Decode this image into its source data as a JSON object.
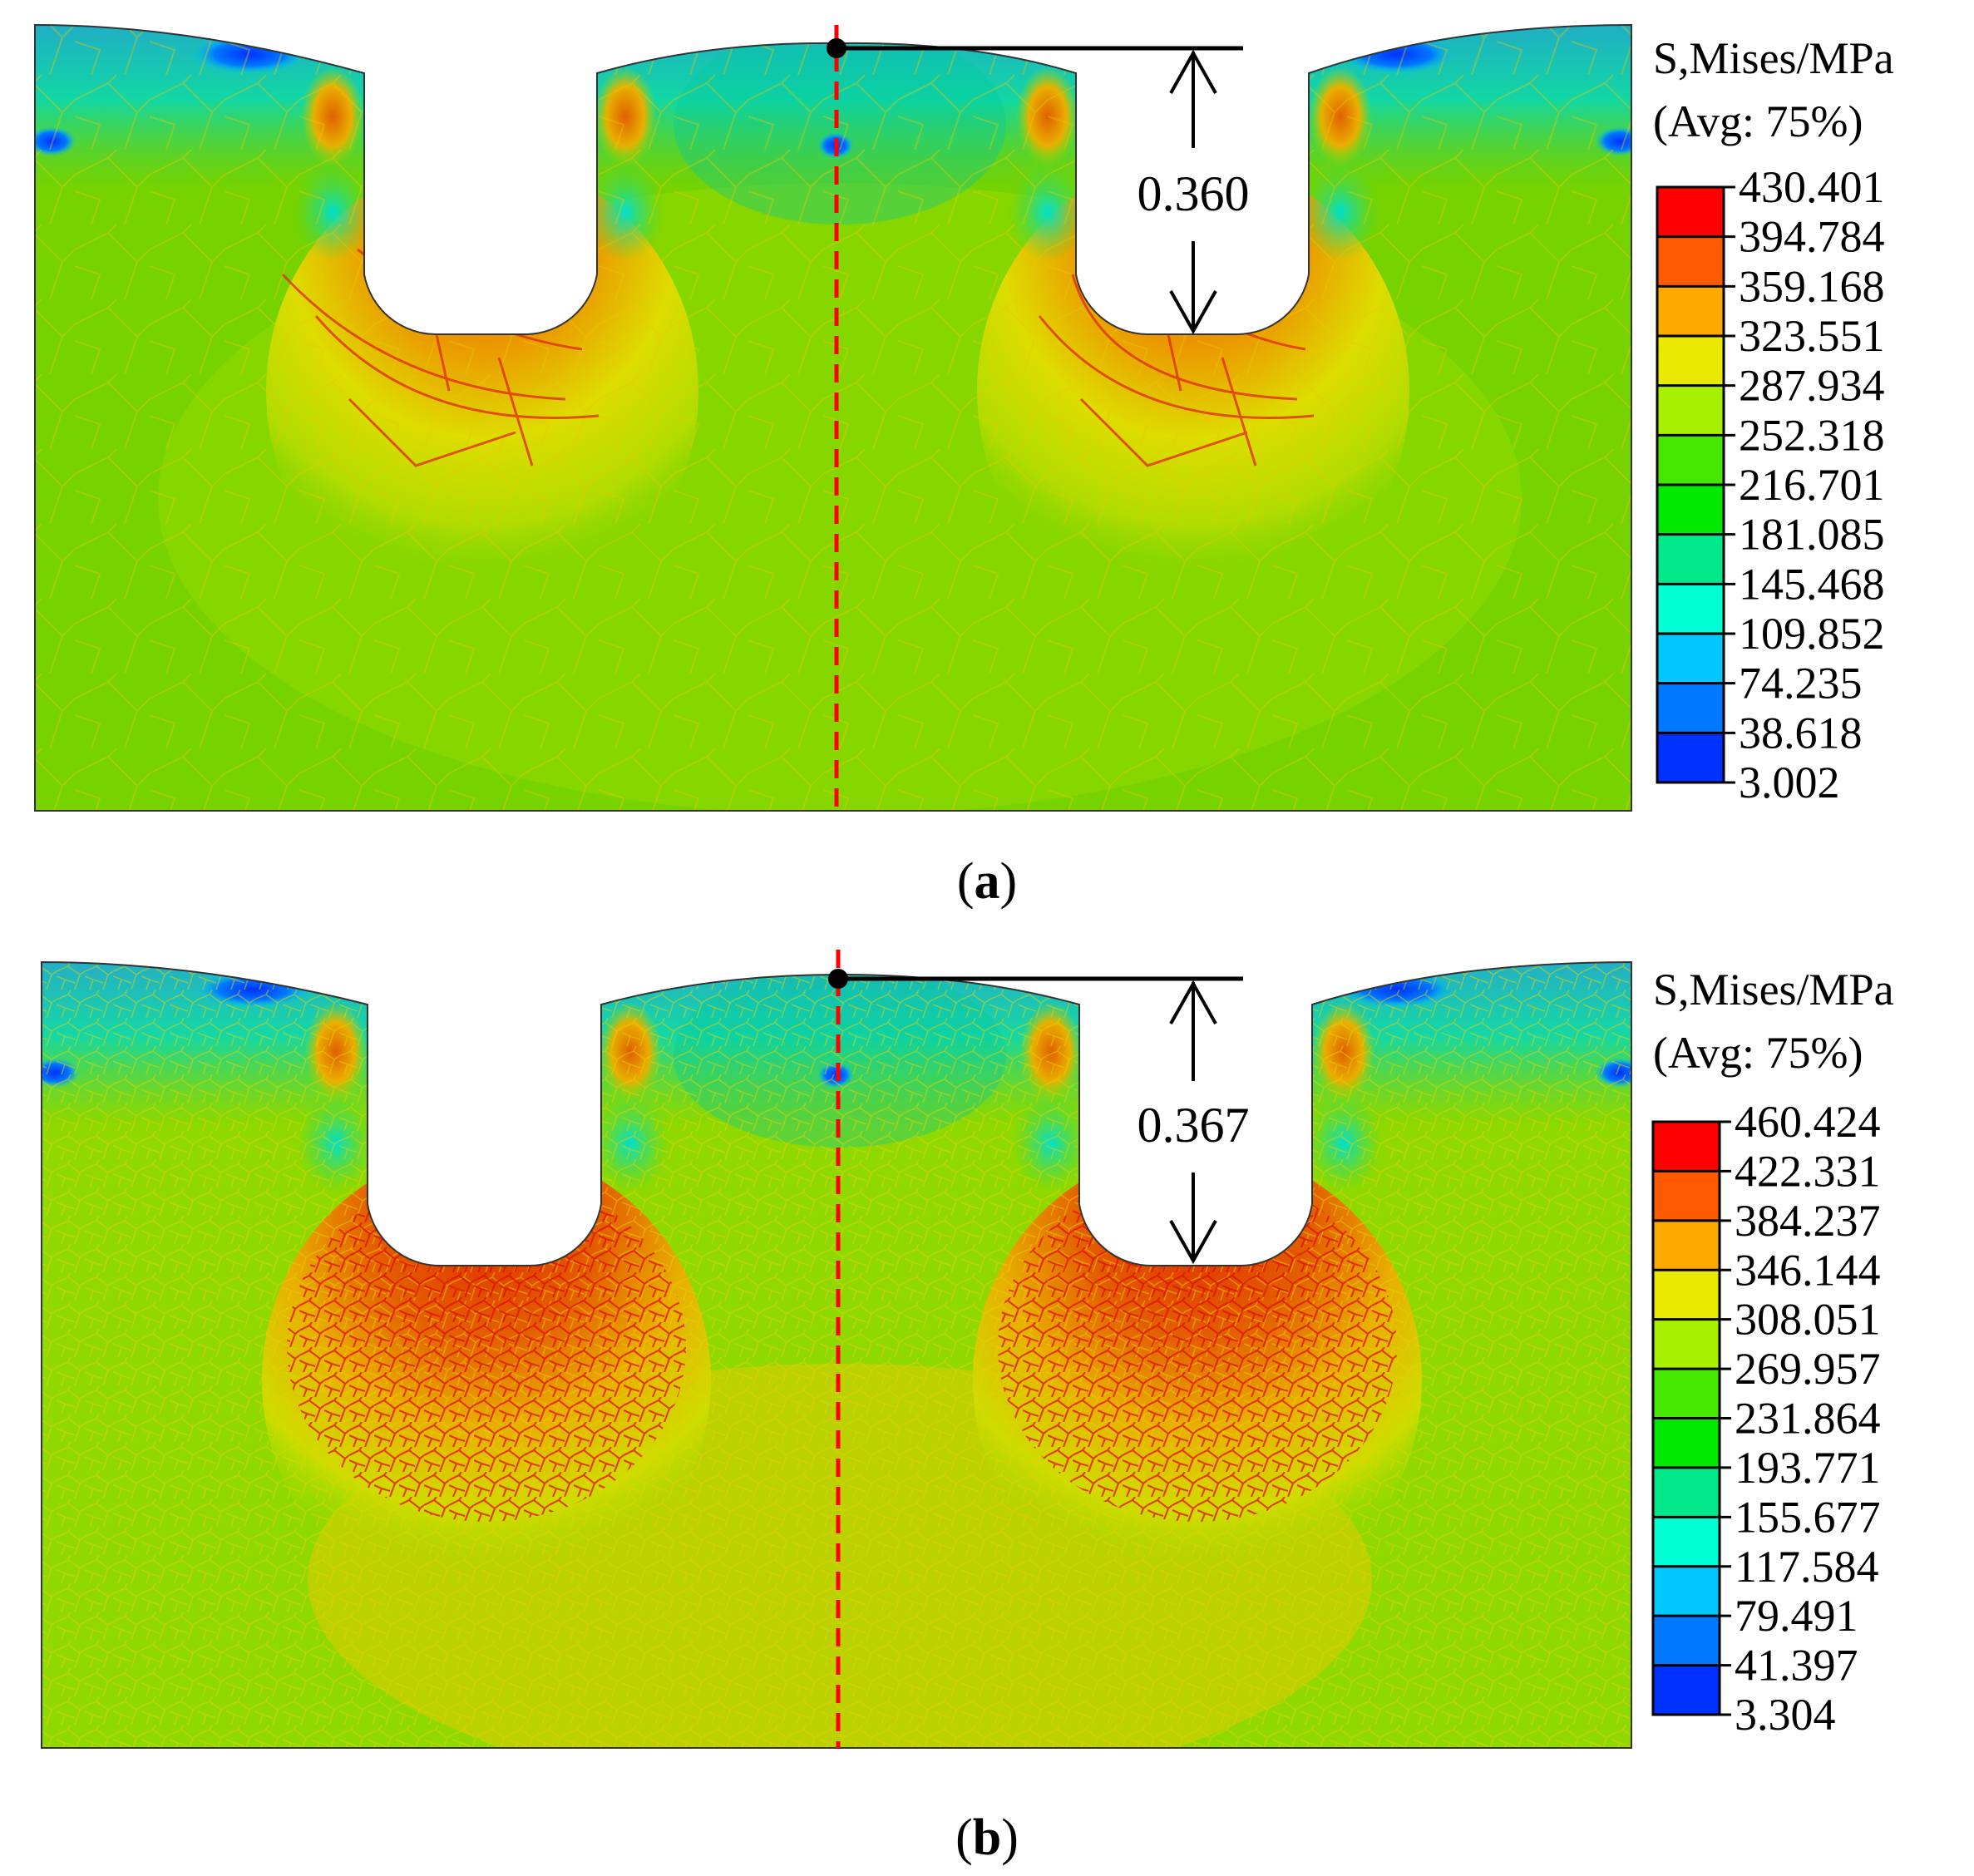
{
  "panels": [
    {
      "id": "a",
      "label": "a",
      "dimension_value": "0.360",
      "legend": {
        "title_line1": "S,Mises/MPa",
        "title_line2": "(Avg: 75%)",
        "values": [
          "430.401",
          "394.784",
          "359.168",
          "323.551",
          "287.934",
          "252.318",
          "216.701",
          "181.085",
          "145.468",
          "109.852",
          "74.235",
          "38.618",
          "3.002"
        ]
      }
    },
    {
      "id": "b",
      "label": "b",
      "dimension_value": "0.367",
      "legend": {
        "title_line1": "S,Mises/MPa",
        "title_line2": "(Avg: 75%)",
        "values": [
          "460.424",
          "422.331",
          "384.237",
          "346.144",
          "308.051",
          "269.957",
          "231.864",
          "193.771",
          "155.677",
          "117.584",
          "79.491",
          "41.397",
          "3.304"
        ]
      }
    }
  ],
  "legend_colors": [
    "#ff0000",
    "#ff5a00",
    "#ffaa00",
    "#e8e800",
    "#a6f000",
    "#46e800",
    "#00e800",
    "#00e88a",
    "#00ffd2",
    "#00c8ff",
    "#0078ff",
    "#0032ff",
    "#0000ff"
  ],
  "colors": {
    "field_green": "#6fd200",
    "field_lime": "#a8dc00",
    "field_yellow": "#d4dc00",
    "field_orange": "#e8a000",
    "field_red": "#e04000",
    "field_cyan": "#00d8c8",
    "field_blue": "#1040ff",
    "centerline": "#ff0000"
  }
}
